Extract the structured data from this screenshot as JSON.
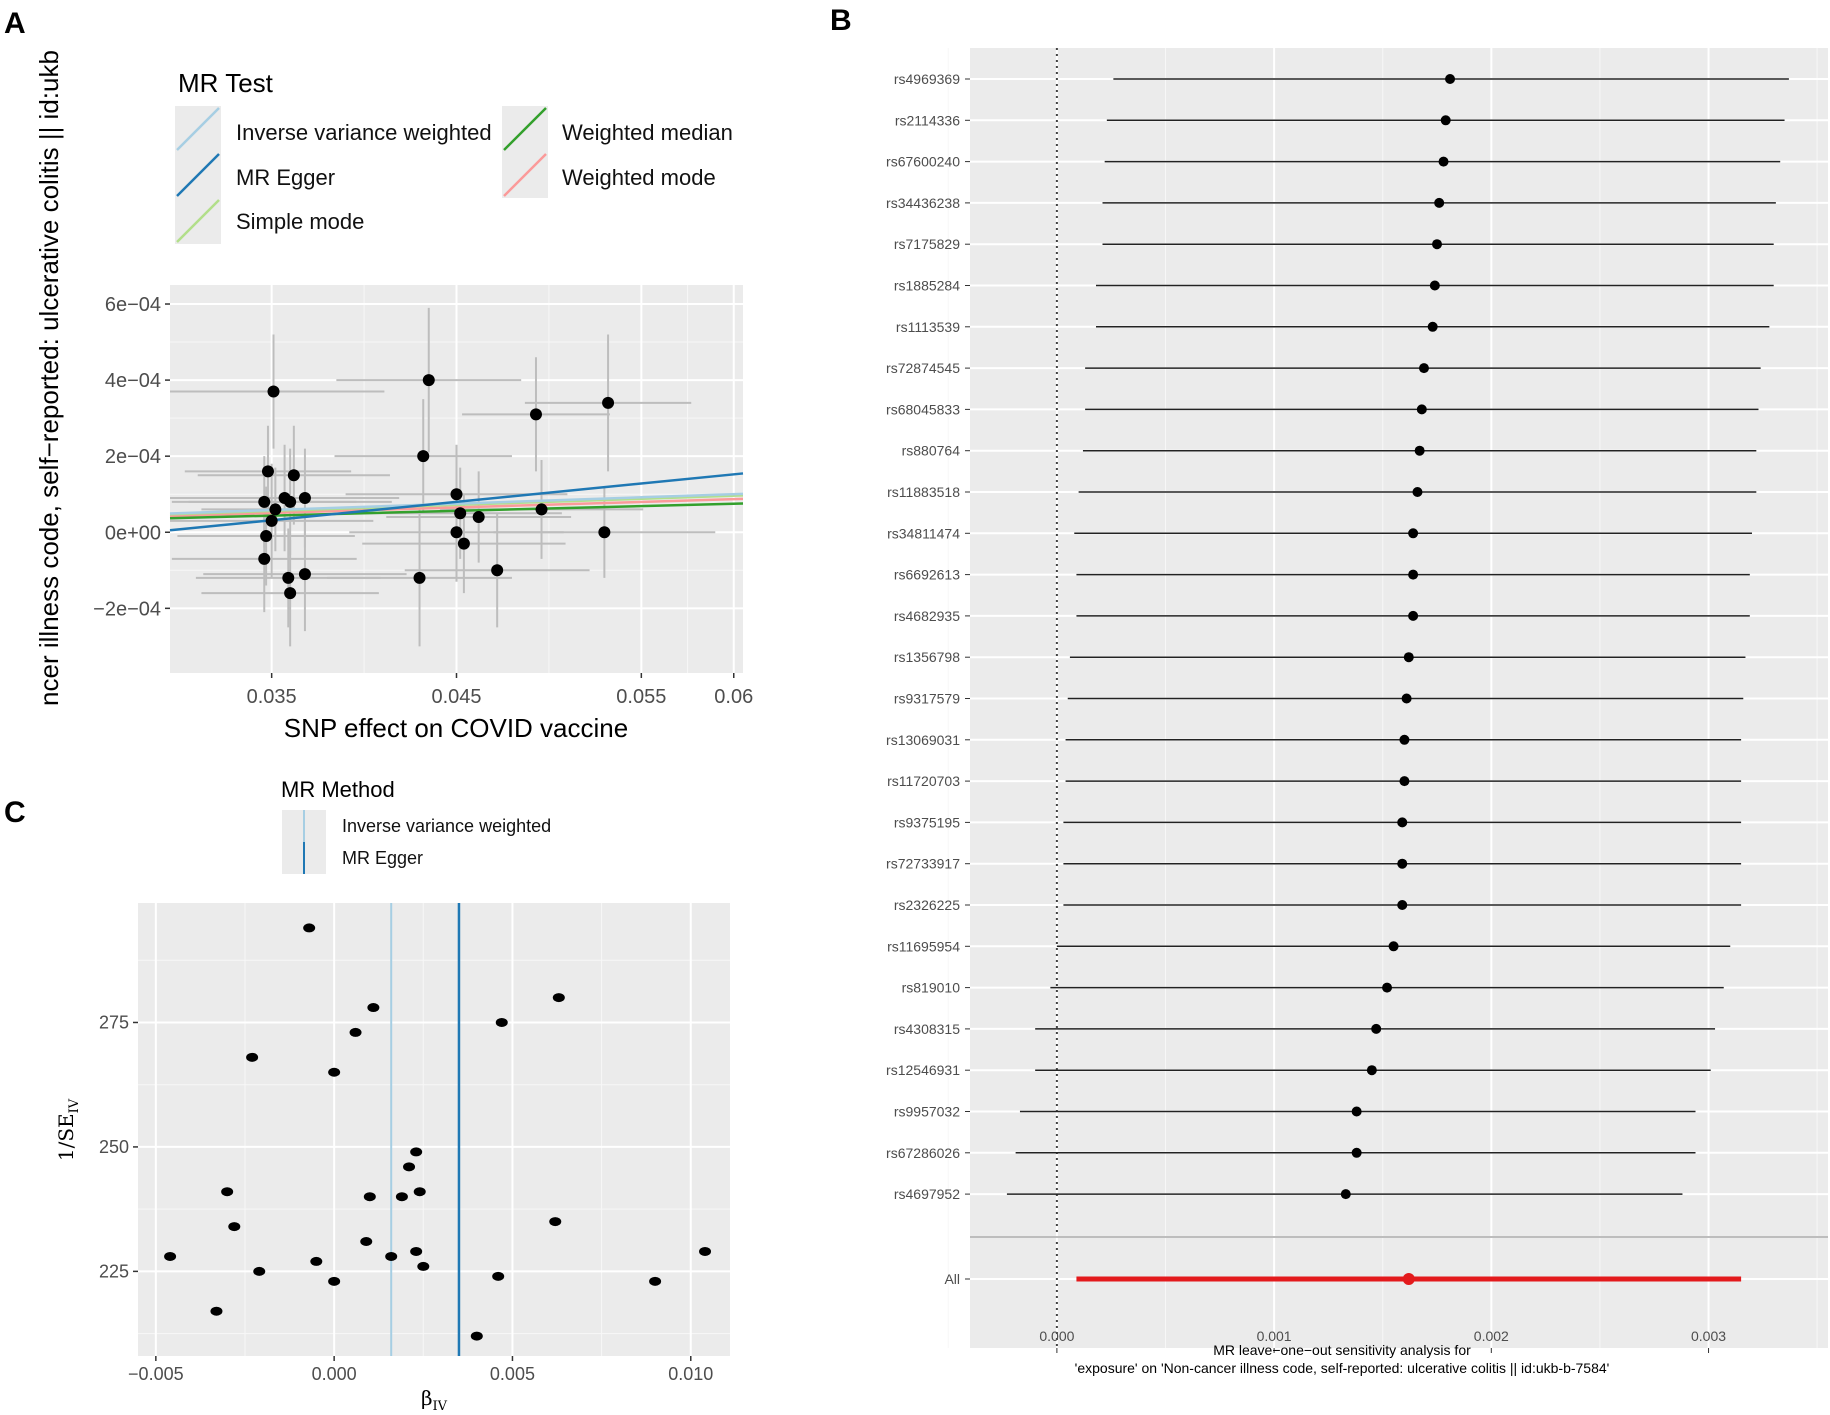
{
  "panels": {
    "A": {
      "label": "A",
      "legend": {
        "title": "MR Test",
        "items": [
          {
            "name": "Inverse variance weighted",
            "color": "#a6cee3"
          },
          {
            "name": "MR Egger",
            "color": "#1f78b4"
          },
          {
            "name": "Simple mode",
            "color": "#b2df8a"
          },
          {
            "name": "Weighted median",
            "color": "#33a02c"
          },
          {
            "name": "Weighted mode",
            "color": "#fb9a99"
          }
        ]
      }
    },
    "B": {
      "label": "B",
      "xlabel_line1": "MR leave−one−out sensitivity analysis for",
      "xlabel_line2": "'exposure' on 'Non-cancer illness code, self-reported: ulcerative colitis || id:ukb-b-7584'"
    },
    "C": {
      "label": "C",
      "legend": {
        "title": "MR Method",
        "items": [
          {
            "name": "Inverse variance weighted",
            "color": "#a6cee3"
          },
          {
            "name": "MR Egger",
            "color": "#1f78b4"
          }
        ]
      }
    }
  },
  "chart_data": [
    {
      "id": "A",
      "type": "scatter",
      "title": "",
      "xlabel": "SNP effect on COVID vaccine",
      "ylabel": "ncer illness code, self−reported: ulcerative colitis || id:ukb",
      "xlim": [
        0.0295,
        0.0605
      ],
      "ylim": [
        -0.00037,
        0.00065
      ],
      "xticks": [
        0.035,
        0.045,
        0.055,
        0.06
      ],
      "xtick_labels": [
        "0.035",
        "0.045",
        "0.055",
        "0.06"
      ],
      "yticks": [
        -0.0002,
        0,
        0.0002,
        0.0004,
        0.0006
      ],
      "ytick_labels": [
        "−2e−04",
        "0e+00",
        "2e−04",
        "4e−04",
        "6e−04"
      ],
      "points": [
        {
          "x": 0.0351,
          "y": 0.00037,
          "xerr": 0.006,
          "yerr": 0.00015
        },
        {
          "x": 0.0348,
          "y": 0.00016,
          "xerr": 0.0045,
          "yerr": 0.00012
        },
        {
          "x": 0.0346,
          "y": 8e-05,
          "xerr": 0.005,
          "yerr": 0.00012
        },
        {
          "x": 0.035,
          "y": 3e-05,
          "xerr": 0.0055,
          "yerr": 0.00015
        },
        {
          "x": 0.0352,
          "y": 6e-05,
          "xerr": 0.004,
          "yerr": 0.00011
        },
        {
          "x": 0.0347,
          "y": -1e-05,
          "xerr": 0.0048,
          "yerr": 0.00013
        },
        {
          "x": 0.0346,
          "y": -7e-05,
          "xerr": 0.005,
          "yerr": 0.00014
        },
        {
          "x": 0.0357,
          "y": 9e-05,
          "xerr": 0.0062,
          "yerr": 0.00014
        },
        {
          "x": 0.036,
          "y": 8e-05,
          "xerr": 0.0055,
          "yerr": 0.00014
        },
        {
          "x": 0.0362,
          "y": 0.00015,
          "xerr": 0.0052,
          "yerr": 0.00013
        },
        {
          "x": 0.0368,
          "y": 9e-05,
          "xerr": 0.005,
          "yerr": 0.00013
        },
        {
          "x": 0.0359,
          "y": -0.00012,
          "xerr": 0.005,
          "yerr": 0.00013
        },
        {
          "x": 0.036,
          "y": -0.00016,
          "xerr": 0.0048,
          "yerr": 0.00014
        },
        {
          "x": 0.0368,
          "y": -0.00011,
          "xerr": 0.0055,
          "yerr": 0.00015
        },
        {
          "x": 0.0435,
          "y": 0.0004,
          "xerr": 0.005,
          "yerr": 0.00019
        },
        {
          "x": 0.0432,
          "y": 0.0002,
          "xerr": 0.0048,
          "yerr": 0.00015
        },
        {
          "x": 0.045,
          "y": 0.0001,
          "xerr": 0.006,
          "yerr": 0.00013
        },
        {
          "x": 0.0452,
          "y": 5e-05,
          "xerr": 0.0055,
          "yerr": 0.00012
        },
        {
          "x": 0.0462,
          "y": 4e-05,
          "xerr": 0.005,
          "yerr": 0.00012
        },
        {
          "x": 0.045,
          "y": 0.0,
          "xerr": 0.0058,
          "yerr": 0.00013
        },
        {
          "x": 0.0454,
          "y": -3e-05,
          "xerr": 0.0055,
          "yerr": 0.00013
        },
        {
          "x": 0.043,
          "y": -0.00012,
          "xerr": 0.005,
          "yerr": 0.00018
        },
        {
          "x": 0.0472,
          "y": -0.0001,
          "xerr": 0.005,
          "yerr": 0.00015
        },
        {
          "x": 0.0493,
          "y": 0.00031,
          "xerr": 0.004,
          "yerr": 0.00015
        },
        {
          "x": 0.0496,
          "y": 6e-05,
          "xerr": 0.0055,
          "yerr": 0.00013
        },
        {
          "x": 0.053,
          "y": 0.0,
          "xerr": 0.006,
          "yerr": 0.00012
        },
        {
          "x": 0.0532,
          "y": 0.00034,
          "xerr": 0.0045,
          "yerr": 0.00018
        }
      ],
      "lines": [
        {
          "name": "Inverse variance weighted",
          "intercept": 0,
          "slope": 0.00167
        },
        {
          "name": "MR Egger",
          "intercept": -0.000137,
          "slope": 0.00482
        },
        {
          "name": "Simple mode",
          "intercept": 0,
          "slope": 0.0016
        },
        {
          "name": "Weighted median",
          "intercept": 0,
          "slope": 0.00125
        },
        {
          "name": "Weighted mode",
          "intercept": 0,
          "slope": 0.00145
        }
      ]
    },
    {
      "id": "B",
      "type": "forest",
      "xlim": [
        -0.0004,
        0.00355
      ],
      "xticks": [
        0.0,
        0.001,
        0.002,
        0.003
      ],
      "xtick_labels": [
        "0.000",
        "0.001",
        "0.002",
        "0.003"
      ],
      "rows": [
        {
          "snp": "rs4969369",
          "b": 0.00181,
          "lo": 0.00026,
          "hi": 0.00337
        },
        {
          "snp": "rs2114336",
          "b": 0.00179,
          "lo": 0.00023,
          "hi": 0.00335
        },
        {
          "snp": "rs67600240",
          "b": 0.00178,
          "lo": 0.00022,
          "hi": 0.00333
        },
        {
          "snp": "rs34436238",
          "b": 0.00176,
          "lo": 0.00021,
          "hi": 0.00331
        },
        {
          "snp": "rs7175829",
          "b": 0.00175,
          "lo": 0.00021,
          "hi": 0.0033
        },
        {
          "snp": "rs1885284",
          "b": 0.00174,
          "lo": 0.00018,
          "hi": 0.0033
        },
        {
          "snp": "rs1113539",
          "b": 0.00173,
          "lo": 0.00018,
          "hi": 0.00328
        },
        {
          "snp": "rs72874545",
          "b": 0.00169,
          "lo": 0.00013,
          "hi": 0.00324
        },
        {
          "snp": "rs68045833",
          "b": 0.00168,
          "lo": 0.00013,
          "hi": 0.00323
        },
        {
          "snp": "rs880764",
          "b": 0.00167,
          "lo": 0.00012,
          "hi": 0.00322
        },
        {
          "snp": "rs11883518",
          "b": 0.00166,
          "lo": 0.0001,
          "hi": 0.00322
        },
        {
          "snp": "rs34811474",
          "b": 0.00164,
          "lo": 8e-05,
          "hi": 0.0032
        },
        {
          "snp": "rs6692613",
          "b": 0.00164,
          "lo": 9e-05,
          "hi": 0.00319
        },
        {
          "snp": "rs4682935",
          "b": 0.00164,
          "lo": 9e-05,
          "hi": 0.00319
        },
        {
          "snp": "rs1356798",
          "b": 0.00162,
          "lo": 6e-05,
          "hi": 0.00317
        },
        {
          "snp": "rs9317579",
          "b": 0.00161,
          "lo": 5e-05,
          "hi": 0.00316
        },
        {
          "snp": "rs13069031",
          "b": 0.0016,
          "lo": 4e-05,
          "hi": 0.00315
        },
        {
          "snp": "rs11720703",
          "b": 0.0016,
          "lo": 4e-05,
          "hi": 0.00315
        },
        {
          "snp": "rs9375195",
          "b": 0.00159,
          "lo": 3e-05,
          "hi": 0.00315
        },
        {
          "snp": "rs72733917",
          "b": 0.00159,
          "lo": 3e-05,
          "hi": 0.00315
        },
        {
          "snp": "rs2326225",
          "b": 0.00159,
          "lo": 3e-05,
          "hi": 0.00315
        },
        {
          "snp": "rs11695954",
          "b": 0.00155,
          "lo": 0.0,
          "hi": 0.0031
        },
        {
          "snp": "rs819010",
          "b": 0.00152,
          "lo": -3e-05,
          "hi": 0.00307
        },
        {
          "snp": "rs4308315",
          "b": 0.00147,
          "lo": -0.0001,
          "hi": 0.00303
        },
        {
          "snp": "rs12546931",
          "b": 0.00145,
          "lo": -0.0001,
          "hi": 0.00301
        },
        {
          "snp": "rs9957032",
          "b": 0.00138,
          "lo": -0.00017,
          "hi": 0.00294
        },
        {
          "snp": "rs67286026",
          "b": 0.00138,
          "lo": -0.00019,
          "hi": 0.00294
        },
        {
          "snp": "rs4697952",
          "b": 0.00133,
          "lo": -0.00023,
          "hi": 0.00288
        }
      ],
      "overall": {
        "snp": "All",
        "b": 0.00162,
        "lo": 9e-05,
        "hi": 0.00315
      }
    },
    {
      "id": "C",
      "type": "scatter",
      "xlabel_main": "β",
      "xlabel_sub": "IV",
      "ylabel_main": "1/SE",
      "ylabel_sub": "IV",
      "xlim": [
        -0.0055,
        0.0111
      ],
      "ylim": [
        208,
        299
      ],
      "xticks": [
        -0.005,
        0.0,
        0.005,
        0.01
      ],
      "xtick_labels": [
        "−0.005",
        "0.000",
        "0.005",
        "0.010"
      ],
      "yticks": [
        225,
        250,
        275
      ],
      "ytick_labels": [
        "225",
        "250",
        "275"
      ],
      "vlines": [
        {
          "name": "Inverse variance weighted",
          "x": 0.0016
        },
        {
          "name": "MR Egger",
          "x": 0.0035
        }
      ],
      "points": [
        {
          "x": -0.0007,
          "y": 294
        },
        {
          "x": 0.0011,
          "y": 278
        },
        {
          "x": 0.0006,
          "y": 273
        },
        {
          "x": 0.0063,
          "y": 280
        },
        {
          "x": 0.0047,
          "y": 275
        },
        {
          "x": -0.0023,
          "y": 268
        },
        {
          "x": -0.0,
          "y": 265
        },
        {
          "x": 0.0023,
          "y": 249
        },
        {
          "x": 0.0021,
          "y": 246
        },
        {
          "x": 0.0024,
          "y": 241
        },
        {
          "x": 0.0019,
          "y": 240
        },
        {
          "x": 0.001,
          "y": 240
        },
        {
          "x": -0.003,
          "y": 241
        },
        {
          "x": -0.0028,
          "y": 234
        },
        {
          "x": 0.0062,
          "y": 235
        },
        {
          "x": 0.0009,
          "y": 231
        },
        {
          "x": 0.0016,
          "y": 228
        },
        {
          "x": 0.0023,
          "y": 229
        },
        {
          "x": 0.0025,
          "y": 226
        },
        {
          "x": -0.0046,
          "y": 228
        },
        {
          "x": -0.0005,
          "y": 227
        },
        {
          "x": -0.0021,
          "y": 225
        },
        {
          "x": 0.0,
          "y": 223
        },
        {
          "x": 0.0046,
          "y": 224
        },
        {
          "x": 0.009,
          "y": 223
        },
        {
          "x": 0.0104,
          "y": 229
        },
        {
          "x": -0.0033,
          "y": 217
        },
        {
          "x": 0.004,
          "y": 212
        }
      ]
    }
  ]
}
